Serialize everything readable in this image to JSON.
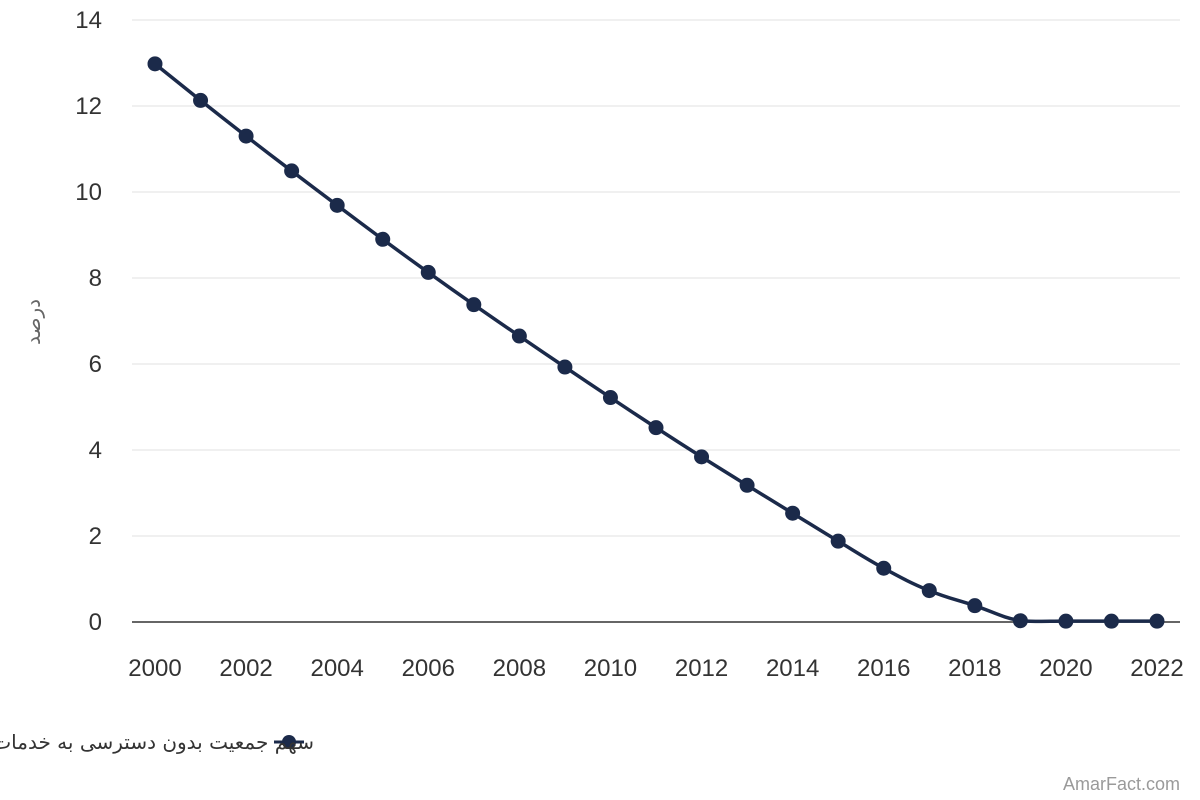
{
  "chart_data": {
    "type": "line",
    "ylabel": "درصد",
    "xlabel": "",
    "x": [
      2000,
      2001,
      2002,
      2003,
      2004,
      2005,
      2006,
      2007,
      2008,
      2009,
      2010,
      2011,
      2012,
      2013,
      2014,
      2015,
      2016,
      2017,
      2018,
      2019,
      2020,
      2021,
      2022
    ],
    "x_ticks": [
      "2000",
      "2002",
      "2004",
      "2006",
      "2008",
      "2010",
      "2012",
      "2014",
      "2016",
      "2018",
      "2020",
      "2022"
    ],
    "y_ticks": [
      "0",
      "2",
      "4",
      "6",
      "8",
      "10",
      "12",
      "14"
    ],
    "xlim": [
      2000,
      2022
    ],
    "ylim": [
      0,
      14
    ],
    "grid": true,
    "legend_position": "bottom",
    "series": [
      {
        "name": "سهم جمعیت بدون دسترسی به خدمات بهداشتی بهبود یافته",
        "color": "#1b2a4a",
        "values": [
          12.98,
          12.13,
          11.3,
          10.49,
          9.69,
          8.9,
          8.13,
          7.38,
          6.65,
          5.93,
          5.22,
          4.52,
          3.84,
          3.18,
          2.53,
          1.88,
          1.25,
          0.73,
          0.38,
          0.03,
          0.02,
          0.02,
          0.02
        ]
      }
    ]
  },
  "watermark": "AmarFact.com"
}
